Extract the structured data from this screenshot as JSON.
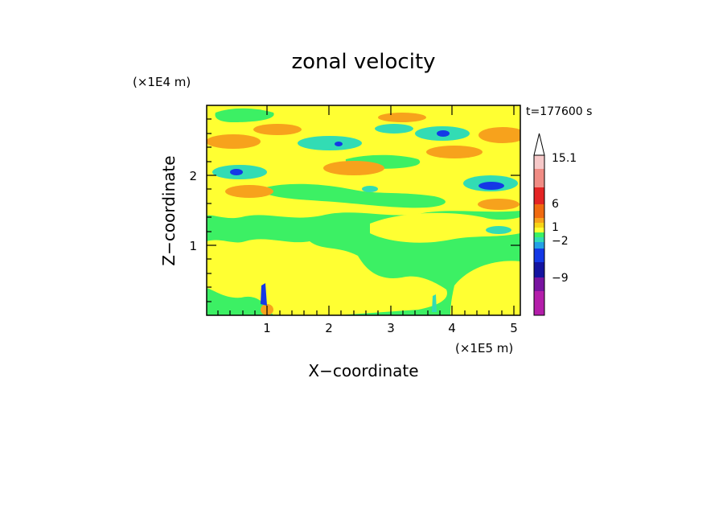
{
  "chart_data": {
    "type": "heatmap",
    "title": "zonal velocity",
    "xlabel": "X−coordinate",
    "ylabel": "Z−coordinate",
    "x_unit": "(×1E5 m)",
    "y_unit": "(×1E4 m)",
    "time_label": "t=177600 s",
    "xlim": [
      0,
      5.15
    ],
    "ylim": [
      0,
      3.0
    ],
    "x_ticks": [
      "1",
      "2",
      "3",
      "4",
      "5"
    ],
    "y_ticks": [
      "1",
      "2"
    ],
    "colorbar": {
      "labels": [
        "15.1",
        "6",
        "1",
        "−2",
        "−9"
      ],
      "levels_top_to_bottom": [
        "overflow",
        "15.1",
        "12",
        "9",
        "6",
        "4",
        "2",
        "1",
        "0",
        "-1",
        "-2",
        "-4",
        "-6",
        "-9",
        "-12"
      ],
      "colors_top_to_bottom": [
        "#f6c8c8",
        "#f08c84",
        "#e42424",
        "#f06a10",
        "#f7a21c",
        "#f7d416",
        "#ffff32",
        "#3cf064",
        "#32dcb4",
        "#24a0e6",
        "#1438e6",
        "#1414a0",
        "#7814a0",
        "#b41eaa",
        "#e614b4"
      ]
    }
  }
}
